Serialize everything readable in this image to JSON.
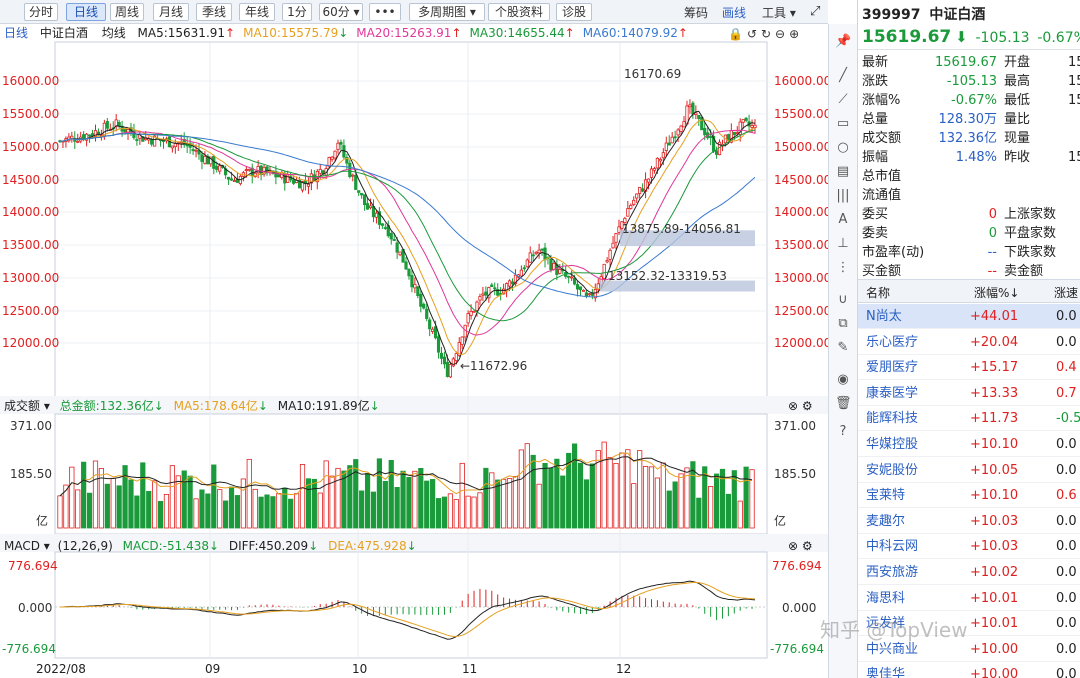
{
  "toolbar": {
    "buttons": [
      "分时",
      "日线",
      "周线",
      "月线",
      "季线",
      "年线",
      "1分",
      "60分 ▾",
      "•••",
      "多周期图 ▾",
      "个股资料",
      "诊股"
    ],
    "active": "日线",
    "right": [
      "筹码",
      "画线",
      "工具 ▾"
    ],
    "right_active": "画线"
  },
  "main_legend": {
    "period": "日线",
    "name": "中证白酒",
    "kind": "均线",
    "ma": [
      {
        "label": "MA5:15631.91",
        "arrow": "↑",
        "color": "#222222",
        "arrow_color": "#e02020"
      },
      {
        "label": "MA10:15575.79",
        "arrow": "↓",
        "color": "#e6a020",
        "arrow_color": "#1a9a3a"
      },
      {
        "label": "MA20:15263.91",
        "arrow": "↑",
        "color": "#e0389a",
        "arrow_color": "#e02020"
      },
      {
        "label": "MA30:14655.44",
        "arrow": "↑",
        "color": "#1a9a3a",
        "arrow_color": "#e02020"
      },
      {
        "label": "MA60:14079.92",
        "arrow": "↑",
        "color": "#3a7ad0",
        "arrow_color": "#e02020"
      }
    ]
  },
  "price_axis": [
    "16000.00",
    "15500.00",
    "15000.00",
    "14500.00",
    "14000.00",
    "13500.00",
    "13000.00",
    "12500.00",
    "12000.00"
  ],
  "annotations": {
    "high": "16170.69",
    "low": "←11672.96",
    "zone1": "13875.89-14056.81",
    "zone2": "13152.32-13319.53"
  },
  "volume_legend": {
    "title": "成交额 ▾",
    "total": "总金额:132.36亿",
    "total_arrow": "↓",
    "ma5": "MA5:178.64亿",
    "ma5_arrow": "↓",
    "ma10": "MA10:191.89亿",
    "ma10_arrow": "↓"
  },
  "volume_axis": [
    "371.00",
    "185.50",
    "亿"
  ],
  "macd_legend": {
    "title": "MACD ▾",
    "params": "(12,26,9)",
    "macd": "MACD:-51.438",
    "macd_arrow": "↓",
    "diff": "DIFF:450.209",
    "diff_arrow": "↓",
    "dea": "DEA:475.928",
    "dea_arrow": "↓"
  },
  "macd_axis": [
    "776.694",
    "0.000",
    "-776.694"
  ],
  "date_axis": [
    "2022/08",
    "09",
    "10",
    "11",
    "12"
  ],
  "quote": {
    "code": "399997",
    "name": "中证白酒",
    "price": "15619.67",
    "change": "-105.13",
    "pct": "-0.67%",
    "rows": [
      {
        "l1": "最新",
        "v1": "15619.67",
        "c1": "#1a9a3a",
        "l2": "开盘",
        "v2": "15"
      },
      {
        "l1": "涨跌",
        "v1": "-105.13",
        "c1": "#1a9a3a",
        "l2": "最高",
        "v2": "15"
      },
      {
        "l1": "涨幅%",
        "v1": "-0.67%",
        "c1": "#1a9a3a",
        "l2": "最低",
        "v2": "15"
      },
      {
        "l1": "总量",
        "v1": "128.30万",
        "c1": "#2a5fc4",
        "l2": "量比",
        "v2": ""
      },
      {
        "l1": "成交额",
        "v1": "132.36亿",
        "c1": "#2a5fc4",
        "l2": "现量",
        "v2": ""
      },
      {
        "l1": "振幅",
        "v1": "1.48%",
        "c1": "#2a5fc4",
        "l2": "昨收",
        "v2": "15"
      },
      {
        "l1": "总市值",
        "v1": "",
        "c1": "#222",
        "l2": "",
        "v2": ""
      },
      {
        "l1": "流通值",
        "v1": "",
        "c1": "#222",
        "l2": "",
        "v2": ""
      },
      {
        "l1": "委买",
        "v1": "0",
        "c1": "#e02020",
        "l2": "上涨家数",
        "v2": ""
      },
      {
        "l1": "委卖",
        "v1": "0",
        "c1": "#1a9a3a",
        "l2": "平盘家数",
        "v2": ""
      },
      {
        "l1": "市盈率(动)",
        "v1": "--",
        "c1": "#2a5fc4",
        "l2": "下跌家数",
        "v2": ""
      },
      {
        "l1": "买金额",
        "v1": "--",
        "c1": "#e02020",
        "l2": "卖金额",
        "v2": ""
      }
    ]
  },
  "list_header": [
    "名称",
    "涨幅%↓",
    "涨速"
  ],
  "list": [
    {
      "name": "N尚太",
      "pct": "+44.01",
      "speed": "0.0",
      "scolor": "#222"
    },
    {
      "name": "乐心医疗",
      "pct": "+20.04",
      "speed": "0.0",
      "scolor": "#222"
    },
    {
      "name": "爱朋医疗",
      "pct": "+15.17",
      "speed": "0.4",
      "scolor": "#e02020"
    },
    {
      "name": "康泰医学",
      "pct": "+13.33",
      "speed": "0.7",
      "scolor": "#e02020"
    },
    {
      "name": "能辉科技",
      "pct": "+11.73",
      "speed": "-0.5",
      "scolor": "#1a9a3a"
    },
    {
      "name": "华媒控股",
      "pct": "+10.10",
      "speed": "0.0",
      "scolor": "#222"
    },
    {
      "name": "安妮股份",
      "pct": "+10.05",
      "speed": "0.0",
      "scolor": "#222"
    },
    {
      "name": "宝莱特",
      "pct": "+10.10",
      "speed": "0.6",
      "scolor": "#e02020"
    },
    {
      "name": "麦趣尔",
      "pct": "+10.03",
      "speed": "0.0",
      "scolor": "#222"
    },
    {
      "name": "中科云网",
      "pct": "+10.03",
      "speed": "0.0",
      "scolor": "#222"
    },
    {
      "name": "西安旅游",
      "pct": "+10.02",
      "speed": "0.0",
      "scolor": "#222"
    },
    {
      "name": "海思科",
      "pct": "+10.01",
      "speed": "0.0",
      "scolor": "#222"
    },
    {
      "name": "远发祥",
      "pct": "+10.01",
      "speed": "0.0",
      "scolor": "#222"
    },
    {
      "name": "中兴商业",
      "pct": "+10.00",
      "speed": "0.0",
      "scolor": "#222"
    },
    {
      "name": "奥佳华",
      "pct": "+10.00",
      "speed": "0.0",
      "scolor": "#222"
    }
  ],
  "watermark": "知乎 @TopView",
  "colors": {
    "up": "#e02020",
    "down": "#1a9a3a",
    "accent": "#2a5fc4"
  }
}
